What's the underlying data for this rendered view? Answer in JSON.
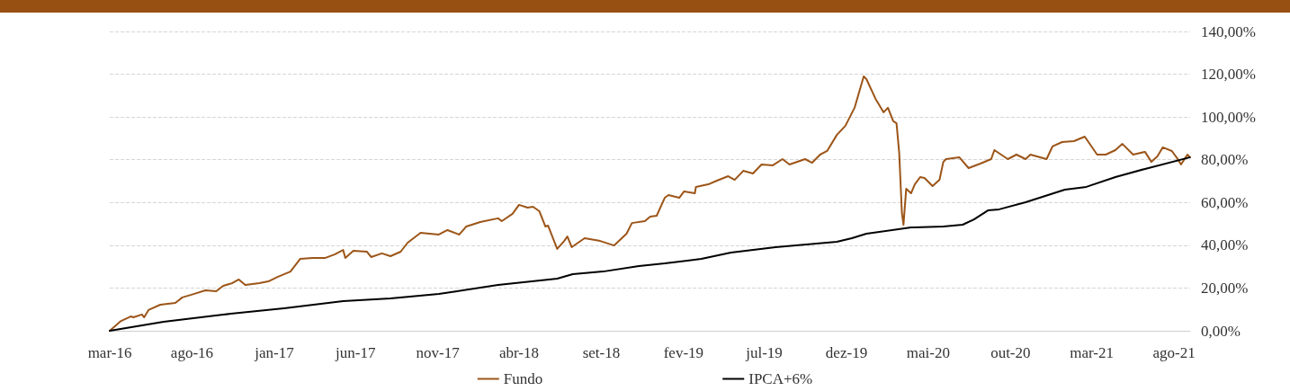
{
  "chart_data": {
    "type": "line",
    "legend": "bottom",
    "grid": "y",
    "marker": "none",
    "line_style": "solid",
    "xlim": [
      "2016-03-01",
      "2021-08-31"
    ],
    "xticks": [
      {
        "value": "2016-03-01",
        "label": "mar-16"
      },
      {
        "value": "2016-08-01",
        "label": "ago-16"
      },
      {
        "value": "2017-01-01",
        "label": "jan-17"
      },
      {
        "value": "2017-06-01",
        "label": "jun-17"
      },
      {
        "value": "2017-11-01",
        "label": "nov-17"
      },
      {
        "value": "2018-04-01",
        "label": "abr-18"
      },
      {
        "value": "2018-09-01",
        "label": "set-18"
      },
      {
        "value": "2019-02-01",
        "label": "fev-19"
      },
      {
        "value": "2019-07-01",
        "label": "jul-19"
      },
      {
        "value": "2019-12-01",
        "label": "dez-19"
      },
      {
        "value": "2020-05-01",
        "label": "mai-20"
      },
      {
        "value": "2020-10-01",
        "label": "out-20"
      },
      {
        "value": "2021-03-01",
        "label": "mar-21"
      },
      {
        "value": "2021-08-01",
        "label": "ago-21"
      }
    ],
    "ylim": [
      0,
      140
    ],
    "yticks": [
      {
        "value": 0,
        "label": "0,00%"
      },
      {
        "value": 20,
        "label": "20,00%"
      },
      {
        "value": 40,
        "label": "40,00%"
      },
      {
        "value": 60,
        "label": "60,00%"
      },
      {
        "value": 80,
        "label": "80,00%"
      },
      {
        "value": 100,
        "label": "100,00%"
      },
      {
        "value": 120,
        "label": "120,00%"
      },
      {
        "value": 140,
        "label": "140,00%"
      }
    ],
    "series": [
      {
        "name": "Fundo",
        "color": "#9c5518",
        "x": [
          "2016-03-01",
          "2016-03-22",
          "2016-04-09",
          "2016-04-14",
          "2016-04-30",
          "2016-05-04",
          "2016-05-12",
          "2016-06-03",
          "2016-07-01",
          "2016-07-14",
          "2016-08-04",
          "2016-08-26",
          "2016-09-15",
          "2016-09-28",
          "2016-10-15",
          "2016-10-27",
          "2016-11-08",
          "2016-12-04",
          "2016-12-21",
          "2017-01-07",
          "2017-01-31",
          "2017-02-18",
          "2017-03-13",
          "2017-04-06",
          "2017-04-23",
          "2017-05-09",
          "2017-05-13",
          "2017-05-28",
          "2017-06-22",
          "2017-06-30",
          "2017-07-20",
          "2017-08-05",
          "2017-08-24",
          "2017-09-06",
          "2017-09-30",
          "2017-11-03",
          "2017-11-19",
          "2017-12-11",
          "2017-12-24",
          "2018-01-19",
          "2018-02-21",
          "2018-02-28",
          "2018-03-20",
          "2018-04-01",
          "2018-04-17",
          "2018-04-27",
          "2018-05-09",
          "2018-05-20",
          "2018-05-25",
          "2018-06-11",
          "2018-06-24",
          "2018-06-30",
          "2018-07-08",
          "2018-08-01",
          "2018-08-30",
          "2018-09-25",
          "2018-10-18",
          "2018-10-28",
          "2018-11-21",
          "2018-12-01",
          "2018-12-13",
          "2018-12-28",
          "2019-01-04",
          "2019-01-24",
          "2019-02-02",
          "2019-02-22",
          "2019-02-24",
          "2019-03-19",
          "2019-04-04",
          "2019-04-25",
          "2019-05-07",
          "2019-05-23",
          "2019-06-10",
          "2019-06-26",
          "2019-07-17",
          "2019-08-04",
          "2019-08-17",
          "2019-09-15",
          "2019-09-28",
          "2019-10-13",
          "2019-10-26",
          "2019-11-13",
          "2019-11-29",
          "2019-12-16",
          "2020-01-02",
          "2020-01-07",
          "2020-01-24",
          "2020-02-08",
          "2020-02-16",
          "2020-02-26",
          "2020-03-03",
          "2020-03-08",
          "2020-03-11",
          "2020-03-13",
          "2020-03-16",
          "2020-03-21",
          "2020-03-30",
          "2020-04-06",
          "2020-04-16",
          "2020-04-24",
          "2020-05-09",
          "2020-05-22",
          "2020-05-29",
          "2020-06-03",
          "2020-06-28",
          "2020-07-15",
          "2020-08-06",
          "2020-08-26",
          "2020-09-01",
          "2020-09-26",
          "2020-10-12",
          "2020-10-29",
          "2020-11-07",
          "2020-12-07",
          "2020-12-18",
          "2021-01-05",
          "2021-01-27",
          "2021-02-16",
          "2021-03-11",
          "2021-03-27",
          "2021-04-14",
          "2021-04-27",
          "2021-05-17",
          "2021-06-08",
          "2021-06-20",
          "2021-07-01",
          "2021-07-11",
          "2021-07-28",
          "2021-08-09",
          "2021-08-14",
          "2021-08-26",
          "2021-08-31"
        ],
        "values": [
          0,
          4.6,
          6.7,
          6.3,
          7.6,
          6.3,
          9.7,
          12.2,
          13.0,
          15.6,
          17.2,
          18.9,
          18.5,
          21.0,
          22.3,
          24.0,
          21.4,
          22.3,
          23.1,
          25.2,
          27.7,
          33.6,
          34.1,
          34.1,
          35.7,
          37.8,
          34.1,
          37.4,
          37.0,
          34.5,
          36.2,
          34.9,
          37.0,
          41.2,
          45.8,
          45.0,
          47.1,
          45.0,
          48.8,
          50.9,
          52.6,
          51.3,
          54.7,
          58.9,
          57.6,
          58.0,
          55.9,
          48.8,
          49.2,
          38.3,
          42.0,
          44.1,
          39.1,
          43.3,
          42.0,
          39.9,
          45.4,
          50.4,
          51.3,
          53.4,
          53.8,
          62.2,
          63.5,
          62.2,
          65.2,
          64.3,
          67.3,
          68.5,
          70.2,
          72.3,
          70.6,
          74.8,
          73.6,
          77.8,
          77.4,
          80.3,
          77.8,
          80.3,
          78.6,
          82.4,
          84.1,
          91.6,
          95.9,
          104.3,
          119.0,
          117.7,
          108.5,
          102.2,
          104.3,
          98.0,
          97.1,
          83.2,
          66.4,
          55.1,
          49.6,
          66.4,
          64.3,
          68.5,
          71.9,
          71.5,
          67.7,
          70.6,
          79.0,
          80.3,
          81.1,
          76.1,
          78.2,
          80.3,
          84.5,
          80.3,
          82.4,
          80.3,
          82.4,
          80.3,
          86.2,
          88.3,
          88.7,
          90.8,
          82.4,
          82.4,
          84.5,
          87.4,
          82.4,
          83.7,
          79.0,
          81.6,
          85.8,
          84.1,
          79.9,
          77.8,
          82.4,
          81.1
        ]
      },
      {
        "name": "IPCA+6%",
        "color": "#000000",
        "x": [
          "2016-03-01",
          "2016-06-09",
          "2016-09-28",
          "2017-01-19",
          "2017-05-09",
          "2017-08-05",
          "2017-11-03",
          "2018-02-21",
          "2018-06-11",
          "2018-07-10",
          "2018-09-04",
          "2018-11-10",
          "2018-12-28",
          "2019-03-06",
          "2019-04-30",
          "2019-07-22",
          "2019-11-13",
          "2019-12-11",
          "2020-01-07",
          "2020-03-30",
          "2020-05-29",
          "2020-07-04",
          "2020-07-25",
          "2020-08-20",
          "2020-09-10",
          "2020-10-29",
          "2021-01-10",
          "2021-02-19",
          "2021-04-14",
          "2021-06-08",
          "2021-08-30"
        ],
        "values": [
          0,
          4.2,
          7.6,
          10.5,
          13.9,
          15.1,
          17.2,
          21.4,
          24.4,
          26.5,
          27.7,
          30.3,
          31.5,
          33.6,
          36.6,
          39.1,
          41.6,
          43.3,
          45.4,
          48.3,
          48.8,
          49.6,
          52.1,
          56.3,
          56.8,
          60.1,
          66.0,
          67.3,
          71.9,
          75.7,
          81.1
        ]
      }
    ]
  }
}
